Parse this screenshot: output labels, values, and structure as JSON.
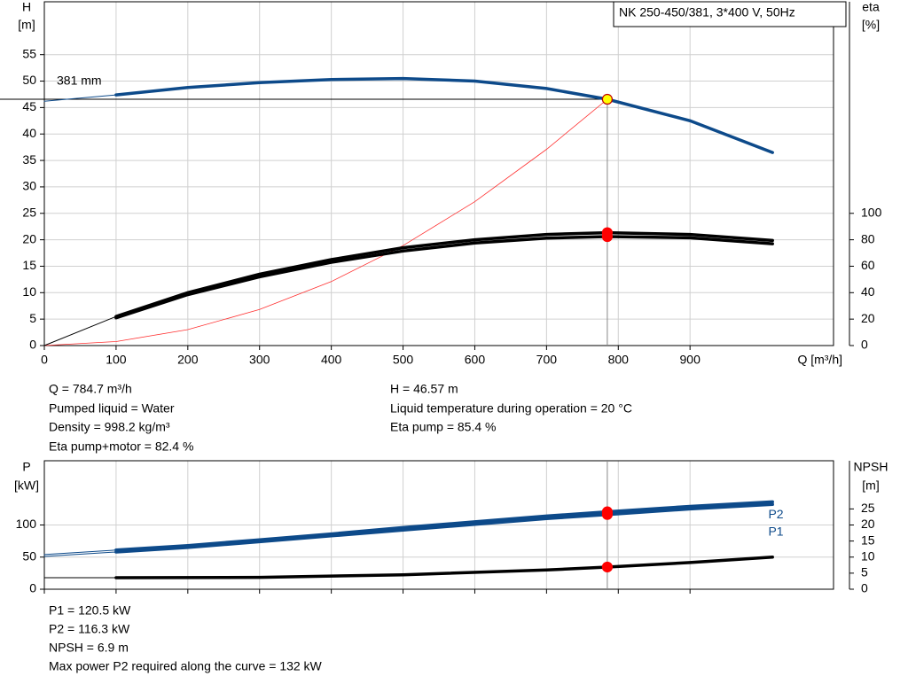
{
  "chart_data": [
    {
      "type": "line",
      "y_label": "H",
      "y_unit": "[m]",
      "y2_label": "eta",
      "y2_unit": "[%]",
      "x_label": "Q [m³/h]",
      "xlim": [
        0,
        1100
      ],
      "xticks": [
        0,
        100,
        200,
        300,
        400,
        500,
        600,
        700,
        800,
        900
      ],
      "ylim": [
        0,
        65
      ],
      "yticks": [
        0,
        5,
        10,
        15,
        20,
        25,
        30,
        35,
        40,
        45,
        50,
        55
      ],
      "y2lim": [
        0,
        260
      ],
      "y2ticks": [
        0,
        20,
        40,
        60,
        80,
        100
      ],
      "grid": true,
      "legend": "NK 250-450/381, 3*400 V, 50Hz",
      "annotation": "381 mm",
      "series": [
        {
          "axis": "y",
          "color": "#0d4a8a",
          "width": 1,
          "x": [
            0,
            100
          ],
          "values": [
            46.2,
            47.4
          ]
        },
        {
          "axis": "y",
          "color": "#0d4a8a",
          "width": 3.5,
          "x": [
            100,
            200,
            300,
            400,
            500,
            600,
            700,
            784.7,
            900,
            1015
          ],
          "values": [
            47.4,
            48.8,
            49.7,
            50.3,
            50.5,
            50.0,
            48.6,
            46.57,
            42.5,
            36.5
          ]
        },
        {
          "axis": "y",
          "color": "#ff3030",
          "width": 0.8,
          "x": [
            0,
            100,
            200,
            300,
            400,
            500,
            600,
            700,
            784.7
          ],
          "values": [
            0,
            0.76,
            3.02,
            6.81,
            12.1,
            18.9,
            27.2,
            37.1,
            46.57
          ]
        },
        {
          "axis": "y2",
          "color": "#000000",
          "width": 1,
          "x": [
            0,
            100
          ],
          "values": [
            0,
            22
          ]
        },
        {
          "axis": "y2",
          "color": "#000000",
          "width": 3.5,
          "x": [
            100,
            200,
            300,
            400,
            500,
            600,
            700,
            784.7,
            900,
            1015
          ],
          "values": [
            22,
            40,
            54,
            65,
            74,
            80,
            84,
            85.4,
            84,
            79.5
          ]
        },
        {
          "axis": "y2",
          "color": "#000000",
          "width": 3.5,
          "x": [
            100,
            200,
            300,
            400,
            500,
            600,
            700,
            784.7,
            900,
            1015
          ],
          "values": [
            21,
            38.5,
            52,
            63,
            71.5,
            77.5,
            81.2,
            82.4,
            81.5,
            77
          ]
        }
      ],
      "points": [
        {
          "axis": "y",
          "x": 784.7,
          "value": 46.57,
          "color": "#ffff00",
          "stroke": "#c00000"
        },
        {
          "axis": "y2",
          "x": 784.7,
          "value": 85.4,
          "color": "#ff0000",
          "stroke": "#ff0000"
        },
        {
          "axis": "y2",
          "x": 784.7,
          "value": 82.4,
          "color": "#ff0000",
          "stroke": "#ff0000"
        }
      ],
      "info": [
        "Q = 784.7 m³/h",
        "Pumped liquid = Water",
        "Density = 998.2 kg/m³",
        "Eta pump+motor = 82.4 %",
        "H = 46.57 m",
        "Liquid temperature during operation = 20 °C",
        "Eta pump = 85.4 %"
      ]
    },
    {
      "type": "line",
      "y_label": "P",
      "y_unit": "[kW]",
      "y2_label": "NPSH",
      "y2_unit": "[m]",
      "xlim": [
        0,
        1100
      ],
      "xticks": [
        0,
        100,
        200,
        300,
        400,
        500,
        600,
        700,
        800,
        900
      ],
      "ylim": [
        0,
        200
      ],
      "yticks": [
        0,
        50,
        100
      ],
      "y2lim": [
        0,
        40
      ],
      "y2ticks": [
        0,
        5,
        10,
        15,
        20,
        25
      ],
      "grid": true,
      "series": [
        {
          "name": "P1",
          "axis": "y",
          "color": "#0d4a8a",
          "width": 1,
          "x": [
            0,
            100
          ],
          "values": [
            54,
            61
          ]
        },
        {
          "axis": "y",
          "color": "#0d4a8a",
          "width": 1,
          "x": [
            0,
            100
          ],
          "values": [
            51,
            58
          ]
        },
        {
          "axis": "y",
          "color": "#0d4a8a",
          "width": 3.5,
          "x": [
            100,
            200,
            300,
            400,
            500,
            600,
            700,
            784.7,
            900,
            1015
          ],
          "values": [
            61,
            68,
            77,
            86,
            96,
            105,
            114,
            120.5,
            129,
            136
          ]
        },
        {
          "name": "P2",
          "axis": "y",
          "color": "#0d4a8a",
          "width": 3.5,
          "x": [
            100,
            200,
            300,
            400,
            500,
            600,
            700,
            784.7,
            900,
            1015
          ],
          "values": [
            58,
            65,
            74,
            83,
            92,
            101,
            110,
            116.3,
            125,
            132
          ]
        },
        {
          "axis": "y2",
          "color": "#000000",
          "width": 1,
          "x": [
            0,
            100
          ],
          "values": [
            3.6,
            3.6
          ]
        },
        {
          "axis": "y2",
          "color": "#000000",
          "width": 3.5,
          "x": [
            100,
            300,
            500,
            700,
            784.7,
            900,
            1015
          ],
          "values": [
            3.6,
            3.7,
            4.5,
            6.0,
            6.9,
            8.3,
            10.0
          ]
        }
      ],
      "points": [
        {
          "axis": "y",
          "x": 784.7,
          "value": 120.5,
          "color": "#ff0000",
          "stroke": "#ff0000"
        },
        {
          "axis": "y",
          "x": 784.7,
          "value": 116.3,
          "color": "#ff0000",
          "stroke": "#ff0000"
        },
        {
          "axis": "y2",
          "x": 784.7,
          "value": 6.9,
          "color": "#ff0000",
          "stroke": "#ff0000"
        }
      ],
      "info": [
        "P1 = 120.5 kW",
        "P2 = 116.3 kW",
        "NPSH = 6.9 m",
        "Max power P2 required along the curve = 132 kW"
      ]
    }
  ]
}
